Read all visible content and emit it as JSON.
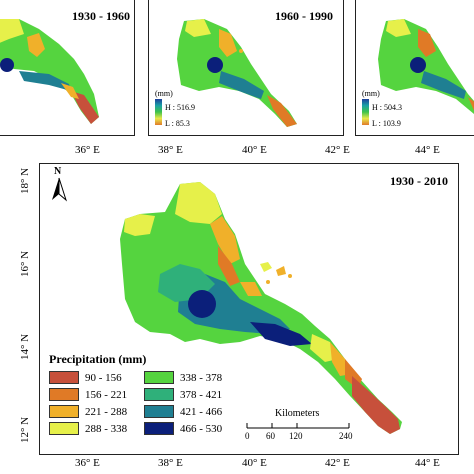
{
  "top_panels": [
    {
      "period": "1930 - 1960",
      "unit": "",
      "high": "",
      "low": ""
    },
    {
      "period": "1960 - 1990",
      "unit": "(mm)",
      "high": "H : 516.9",
      "low": "L : 85.3"
    },
    {
      "period": "",
      "unit": "(mm)",
      "high": "H : 504.3",
      "low": "L : 103.9"
    }
  ],
  "main_map": {
    "period": "1930 - 2010",
    "north_label": "N"
  },
  "longitude_ticks": [
    "36° E",
    "38° E",
    "40° E",
    "42° E",
    "44° E"
  ],
  "latitude_ticks": [
    "18° N",
    "16° N",
    "14° N",
    "12° N"
  ],
  "precipitation_legend": {
    "title": "Precipitation (mm)",
    "classes": [
      {
        "range": "90 - 156",
        "color": "#c7503b"
      },
      {
        "range": "338 - 378",
        "color": "#55d43f"
      },
      {
        "range": "156 - 221",
        "color": "#e07a26"
      },
      {
        "range": "378 - 421",
        "color": "#2fb07a"
      },
      {
        "range": "221 - 288",
        "color": "#f0b02a"
      },
      {
        "range": "421 - 466",
        "color": "#1f7f92"
      },
      {
        "range": "288 - 338",
        "color": "#e6f04a"
      },
      {
        "range": "466 - 530",
        "color": "#0b1f7a"
      }
    ]
  },
  "scale_bar": {
    "title": "Kilometers",
    "ticks": [
      "0",
      "60",
      "120",
      "240"
    ]
  }
}
